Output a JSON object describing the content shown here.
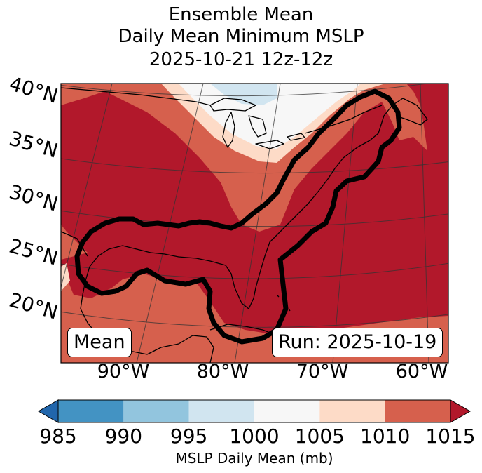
{
  "title": {
    "line1": "Ensemble Mean",
    "line2": "Daily Mean Minimum MSLP",
    "line3": "2025-10-21 12z-12z"
  },
  "map": {
    "lat_labels": [
      "40°N",
      "35°N",
      "30°N",
      "25°N",
      "20°N"
    ],
    "lon_labels": [
      "90°W",
      "80°W",
      "70°W",
      "60°W"
    ],
    "mean_box": "Mean",
    "run_box": "Run: 2025-10-19",
    "region": "Eastern United States, Gulf of Mexico and western Atlantic"
  },
  "colorbar": {
    "label": "MSLP Daily Mean (mb)",
    "ticks": [
      "985",
      "990",
      "995",
      "1000",
      "1005",
      "1010",
      "1015"
    ],
    "bins": [
      {
        "range": "<985",
        "color": "#2166ac"
      },
      {
        "range": "985-990",
        "color": "#4393c3"
      },
      {
        "range": "990-995",
        "color": "#92c5de"
      },
      {
        "range": "995-1000",
        "color": "#d1e5f0"
      },
      {
        "range": "1000-1005",
        "color": "#f7f7f7"
      },
      {
        "range": "1005-1010",
        "color": "#fddbc7"
      },
      {
        "range": "1010-1015",
        "color": "#d6604d"
      },
      {
        "range": ">1015",
        "color": "#b2182b"
      }
    ]
  }
}
